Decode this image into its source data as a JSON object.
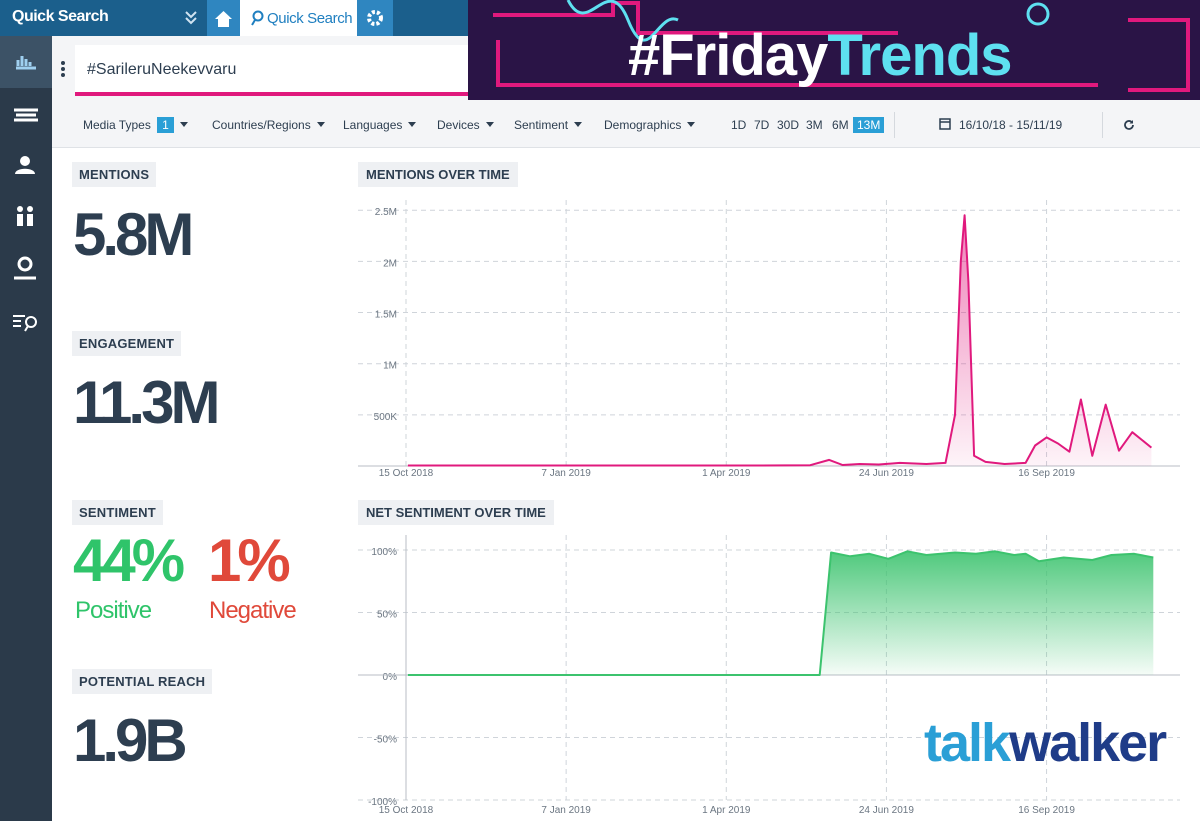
{
  "topbar": {
    "app_title": "Quick Search",
    "tab": "Quick Search"
  },
  "banner": {
    "part1": "#Friday",
    "part2": "Trends"
  },
  "search": {
    "query": "#SarileruNeekevvaru"
  },
  "filters": {
    "items": [
      "Media Types",
      "Countries/Regions",
      "Languages",
      "Devices",
      "Sentiment",
      "Demographics"
    ],
    "media_types_count": 1,
    "periods": [
      "1D",
      "7D",
      "30D",
      "3M",
      "6M"
    ],
    "selected_period": "13M",
    "date_range": "16/10/18 - 15/11/19"
  },
  "kpis": {
    "mentions": {
      "label": "MENTIONS",
      "value": "5.8M"
    },
    "engagement": {
      "label": "ENGAGEMENT",
      "value": "11.3M"
    },
    "sentiment": {
      "label": "SENTIMENT",
      "positive": "44%",
      "positive_label": "Positive",
      "negative": "1%",
      "negative_label": "Negative"
    },
    "reach": {
      "label": "POTENTIAL REACH",
      "value": "1.9B"
    }
  },
  "logo": {
    "part1": "talk",
    "part2": "walker"
  },
  "chart_data": [
    {
      "type": "area",
      "title": "MENTIONS OVER TIME",
      "color": "#e0197d",
      "x": [
        "2018-10-16",
        "2018-11-15",
        "2018-12-15",
        "2019-01-15",
        "2019-02-15",
        "2019-03-15",
        "2019-04-15",
        "2019-05-15",
        "2019-05-25",
        "2019-06-01",
        "2019-06-10",
        "2019-06-20",
        "2019-07-01",
        "2019-07-15",
        "2019-07-25",
        "2019-07-30",
        "2019-08-02",
        "2019-08-04",
        "2019-08-06",
        "2019-08-09",
        "2019-08-15",
        "2019-08-25",
        "2019-09-05",
        "2019-09-10",
        "2019-09-16",
        "2019-09-22",
        "2019-09-28",
        "2019-10-04",
        "2019-10-10",
        "2019-10-17",
        "2019-10-24",
        "2019-10-31",
        "2019-11-10"
      ],
      "values": [
        5000,
        5000,
        5000,
        5000,
        5000,
        5000,
        5000,
        8000,
        60000,
        10000,
        20000,
        15000,
        30000,
        20000,
        30000,
        500000,
        2000000,
        2450000,
        1800000,
        100000,
        40000,
        20000,
        30000,
        200000,
        280000,
        220000,
        140000,
        650000,
        100000,
        600000,
        150000,
        330000,
        180000
      ],
      "xlim": [
        "2018-10-15",
        "2019-11-25"
      ],
      "xticks": [
        {
          "value": "2018-10-15",
          "label": "15 Oct 2018"
        },
        {
          "value": "2019-01-07",
          "label": "7 Jan 2019"
        },
        {
          "value": "2019-04-01",
          "label": "1 Apr 2019"
        },
        {
          "value": "2019-06-24",
          "label": "24 Jun 2019"
        },
        {
          "value": "2019-09-16",
          "label": "16 Sep 2019"
        }
      ],
      "ylim": [
        0,
        2600000
      ],
      "yticks": [
        {
          "value": 500000,
          "label": "500K"
        },
        {
          "value": 1000000,
          "label": "1M"
        },
        {
          "value": 1500000,
          "label": "1.5M"
        },
        {
          "value": 2000000,
          "label": "2M"
        },
        {
          "value": 2500000,
          "label": "2.5M"
        }
      ],
      "grid": true
    },
    {
      "type": "area",
      "title": "NET SENTIMENT OVER TIME",
      "color": "#3cc36e",
      "x": [
        "2018-10-16",
        "2019-05-20",
        "2019-05-26",
        "2019-06-05",
        "2019-06-15",
        "2019-06-25",
        "2019-07-05",
        "2019-07-15",
        "2019-07-30",
        "2019-08-10",
        "2019-08-20",
        "2019-08-30",
        "2019-09-05",
        "2019-09-12",
        "2019-09-25",
        "2019-10-10",
        "2019-10-20",
        "2019-11-01",
        "2019-11-11"
      ],
      "values": [
        0,
        0,
        98,
        95,
        97,
        93,
        99,
        96,
        98,
        97,
        99,
        96,
        97,
        91,
        94,
        92,
        96,
        97,
        94
      ],
      "xlim": [
        "2018-10-15",
        "2019-11-25"
      ],
      "xticks": [
        {
          "value": "2018-10-15",
          "label": "15 Oct 2018"
        },
        {
          "value": "2019-01-07",
          "label": "7 Jan 2019"
        },
        {
          "value": "2019-04-01",
          "label": "1 Apr 2019"
        },
        {
          "value": "2019-06-24",
          "label": "24 Jun 2019"
        },
        {
          "value": "2019-09-16",
          "label": "16 Sep 2019"
        }
      ],
      "ylim": [
        -100,
        112
      ],
      "yticks": [
        {
          "value": -100,
          "label": "-100%"
        },
        {
          "value": -50,
          "label": "-50%"
        },
        {
          "value": 0,
          "label": "0%"
        },
        {
          "value": 50,
          "label": "50%"
        },
        {
          "value": 100,
          "label": "100%"
        }
      ],
      "grid": true
    }
  ]
}
